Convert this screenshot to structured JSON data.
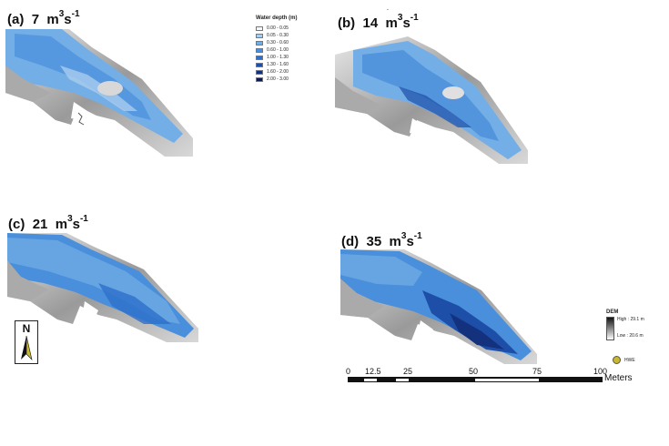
{
  "panels": [
    {
      "id": "a",
      "prefix": "(a)",
      "value": "7",
      "unit_m": "m",
      "exp1": "3",
      "unit_s": "s",
      "exp2": "-1"
    },
    {
      "id": "b",
      "prefix": "(b)",
      "value": "14",
      "unit_m": "m",
      "exp1": "3",
      "unit_s": "s",
      "exp2": "-1"
    },
    {
      "id": "c",
      "prefix": "(c)",
      "value": "21",
      "unit_m": "m",
      "exp1": "3",
      "unit_s": "s",
      "exp2": "-1"
    },
    {
      "id": "d",
      "prefix": "(d)",
      "value": "35",
      "unit_m": "m",
      "exp1": "3",
      "unit_s": "s",
      "exp2": "-1"
    }
  ],
  "legend": {
    "title": "Water depth (m)",
    "classes": [
      {
        "label": "0.00 - 0.05",
        "color": "#f4f7fb"
      },
      {
        "label": "0.05 - 0.30",
        "color": "#a9cdee"
      },
      {
        "label": "0.30 - 0.60",
        "color": "#74aee6"
      },
      {
        "label": "0.60 - 1.00",
        "color": "#4a8fdb"
      },
      {
        "label": "1.00 - 1.30",
        "color": "#2d6fca"
      },
      {
        "label": "1.30 - 1.60",
        "color": "#1d4fa8"
      },
      {
        "label": "1.60 - 2.00",
        "color": "#14317e"
      },
      {
        "label": "2.00 - 3.00",
        "color": "#0b1a52"
      }
    ]
  },
  "north": {
    "letter": "N"
  },
  "dem": {
    "title": "DEM",
    "high": "High : 29.1 m",
    "low": "Low : 20.6 m"
  },
  "hwe": {
    "label": "HWE",
    "color": "#c8b832"
  },
  "scale_bar": {
    "ticks": [
      "0",
      "12.5",
      "25",
      "50",
      "75",
      "100"
    ],
    "unit": "Meters"
  },
  "top_mark": "-"
}
